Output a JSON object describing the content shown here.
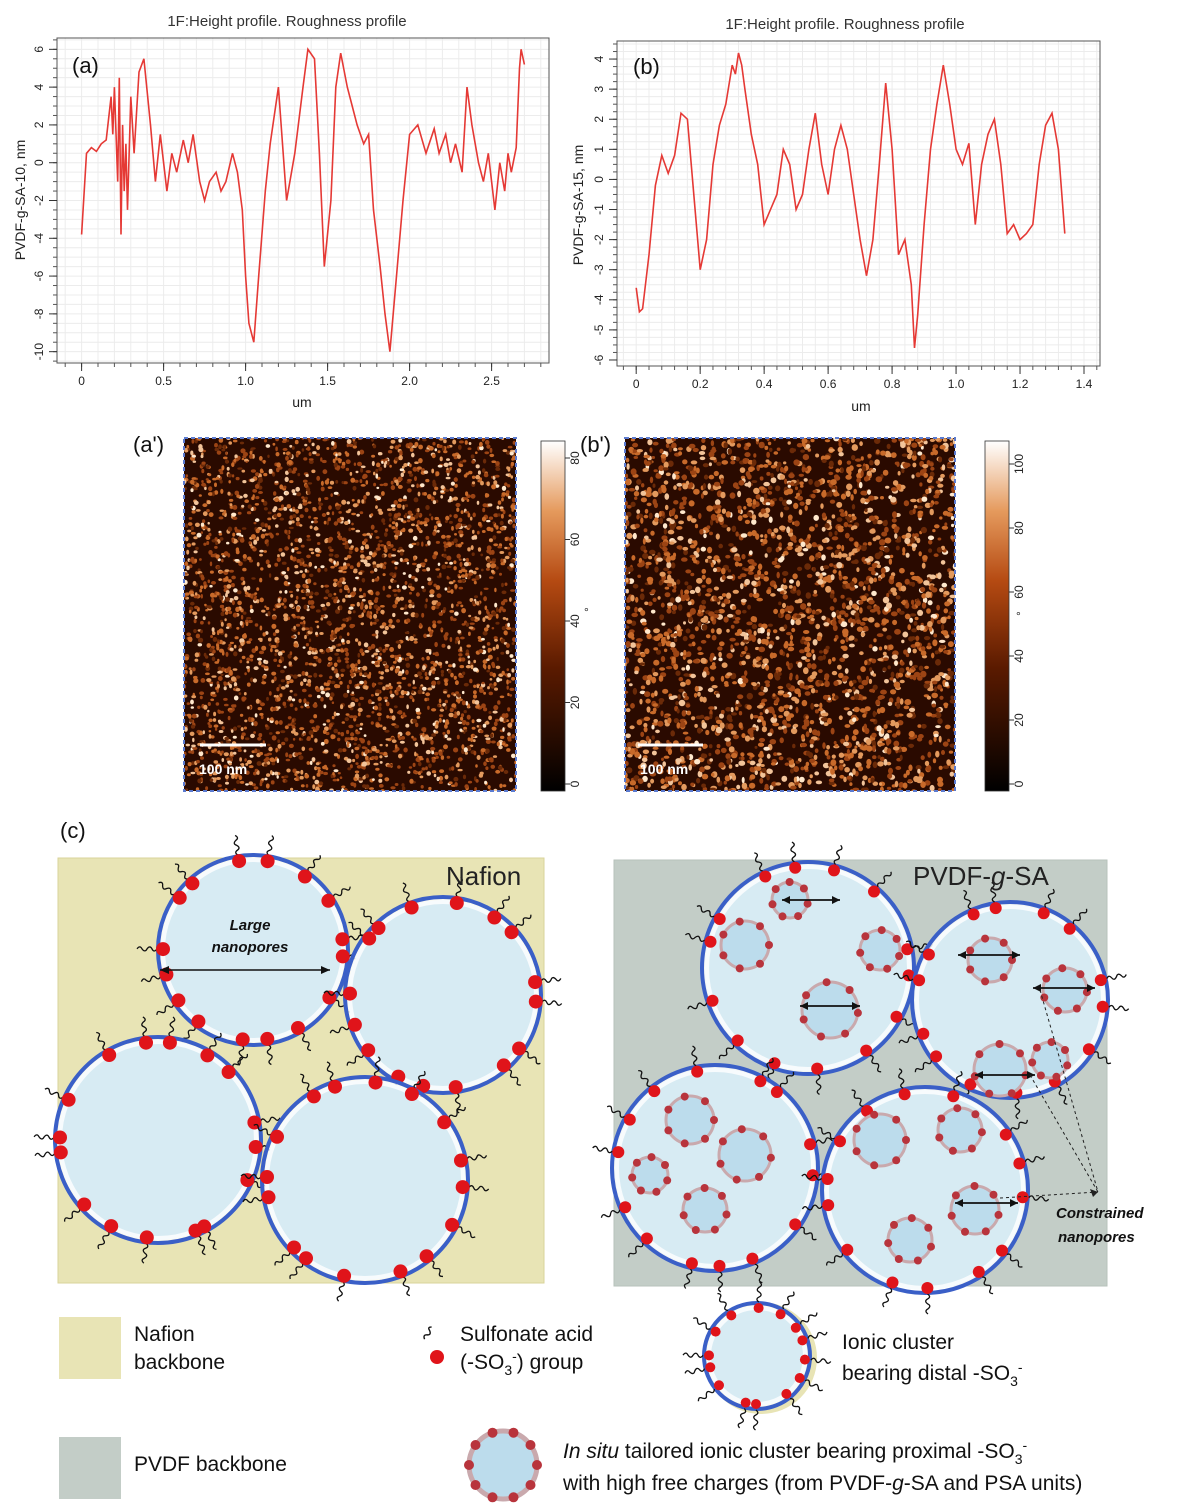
{
  "chart_data": [
    {
      "panel_label": "(a)",
      "type": "line",
      "title": "1F:Height profile. Roughness profile",
      "xlabel": "um",
      "ylabel": "PVDF-g-SA-10, nm",
      "xlim": [
        -0.15,
        2.85
      ],
      "ylim": [
        -10.6,
        6.6
      ],
      "xticks": [
        0,
        0.5,
        1.0,
        1.5,
        2.0,
        2.5
      ],
      "xtick_labels": [
        "0",
        "0.5",
        "1.0",
        "1.5",
        "2.0",
        "2.5"
      ],
      "yticks": [
        -10,
        -8,
        -6,
        -4,
        -2,
        0,
        2,
        4,
        6
      ],
      "yminor_step": 0.5,
      "grid": true,
      "color": "#e53935",
      "series": [
        {
          "x": [
            0,
            0.03,
            0.06,
            0.09,
            0.12,
            0.15,
            0.18,
            0.19,
            0.2,
            0.22,
            0.23,
            0.24,
            0.25,
            0.26,
            0.27,
            0.28,
            0.3,
            0.32,
            0.35,
            0.38,
            0.42,
            0.45,
            0.48,
            0.52,
            0.55,
            0.58,
            0.62,
            0.65,
            0.68,
            0.72,
            0.75,
            0.78,
            0.82,
            0.85,
            0.88,
            0.92,
            0.95,
            0.98,
            1.0,
            1.02,
            1.05,
            1.08,
            1.12,
            1.15,
            1.2,
            1.25,
            1.3,
            1.35,
            1.38,
            1.42,
            1.45,
            1.48,
            1.52,
            1.55,
            1.58,
            1.62,
            1.65,
            1.68,
            1.72,
            1.75,
            1.78,
            1.82,
            1.85,
            1.88,
            1.92,
            1.96,
            2.0,
            2.05,
            2.1,
            2.15,
            2.18,
            2.22,
            2.25,
            2.28,
            2.32,
            2.35,
            2.38,
            2.42,
            2.45,
            2.48,
            2.52,
            2.55,
            2.58,
            2.6,
            2.62,
            2.65,
            2.67,
            2.68,
            2.7
          ],
          "y": [
            -3.8,
            0.5,
            0.8,
            0.6,
            1.0,
            1.2,
            3.5,
            1.5,
            4.0,
            -1.0,
            4.5,
            -3.8,
            2.0,
            -1.5,
            1.0,
            -2.5,
            3.5,
            0.5,
            4.8,
            5.5,
            2.0,
            -1.0,
            1.5,
            -1.5,
            0.5,
            -0.5,
            1.2,
            0.0,
            1.5,
            -1.0,
            -2.0,
            -1.0,
            -0.5,
            -1.5,
            -1.0,
            0.5,
            -0.5,
            -2.5,
            -6.0,
            -8.5,
            -9.5,
            -6.0,
            -1.5,
            1.0,
            4.0,
            -2.0,
            0.5,
            4.0,
            6.0,
            5.5,
            0.5,
            -5.5,
            -2.0,
            4.0,
            5.8,
            4.0,
            3.0,
            2.0,
            1.0,
            1.5,
            -2.5,
            -5.5,
            -8.0,
            -10.0,
            -6.0,
            -2.0,
            1.5,
            2.0,
            0.5,
            1.8,
            0.5,
            1.5,
            0.0,
            1.0,
            -0.5,
            4.0,
            2.0,
            0.0,
            -1.0,
            0.5,
            -2.5,
            0.0,
            -1.5,
            0.5,
            -0.5,
            0.8,
            5.0,
            6.0,
            5.2
          ]
        }
      ]
    },
    {
      "panel_label": "(b)",
      "type": "line",
      "title": "1F:Height profile. Roughness profile",
      "xlabel": "um",
      "ylabel": "PVDF-g-SA-15, nm",
      "xlim": [
        -0.06,
        1.45
      ],
      "ylim": [
        -6.2,
        4.6
      ],
      "xticks": [
        0,
        0.2,
        0.4,
        0.6,
        0.8,
        1.0,
        1.2,
        1.4
      ],
      "xtick_labels": [
        "0",
        "0.2",
        "0.4",
        "0.6",
        "0.8",
        "1.0",
        "1.2",
        "1.4"
      ],
      "yticks": [
        -6,
        -5,
        -4,
        -3,
        -2,
        -1,
        0,
        1,
        2,
        3,
        4
      ],
      "yminor_step": 0.25,
      "grid": true,
      "color": "#e53935",
      "series": [
        {
          "x": [
            0,
            0.01,
            0.02,
            0.04,
            0.06,
            0.08,
            0.1,
            0.12,
            0.14,
            0.16,
            0.18,
            0.2,
            0.22,
            0.24,
            0.26,
            0.28,
            0.3,
            0.31,
            0.32,
            0.33,
            0.34,
            0.36,
            0.38,
            0.4,
            0.42,
            0.44,
            0.46,
            0.48,
            0.5,
            0.52,
            0.54,
            0.56,
            0.58,
            0.6,
            0.62,
            0.64,
            0.66,
            0.68,
            0.7,
            0.72,
            0.74,
            0.76,
            0.78,
            0.8,
            0.82,
            0.84,
            0.86,
            0.87,
            0.88,
            0.9,
            0.92,
            0.94,
            0.96,
            0.98,
            1.0,
            1.02,
            1.04,
            1.06,
            1.08,
            1.1,
            1.12,
            1.14,
            1.16,
            1.18,
            1.2,
            1.22,
            1.24,
            1.26,
            1.28,
            1.3,
            1.32,
            1.34
          ],
          "y": [
            -3.6,
            -4.4,
            -4.3,
            -2.5,
            -0.2,
            0.8,
            0.2,
            0.8,
            2.2,
            2.0,
            -0.5,
            -3.0,
            -2.0,
            0.5,
            1.8,
            2.5,
            3.8,
            3.5,
            4.2,
            3.8,
            3.0,
            1.5,
            0.5,
            -1.5,
            -1.0,
            -0.5,
            1.0,
            0.5,
            -1.0,
            -0.5,
            1.0,
            2.2,
            0.5,
            -0.5,
            1.0,
            1.8,
            1.0,
            -0.5,
            -2.0,
            -3.2,
            -2.0,
            0.5,
            3.2,
            1.0,
            -2.5,
            -2.0,
            -3.5,
            -5.6,
            -4.5,
            -1.5,
            1.0,
            2.5,
            3.8,
            2.5,
            1.0,
            0.5,
            1.2,
            -1.5,
            0.5,
            1.5,
            2.0,
            0.5,
            -1.8,
            -1.5,
            -2.0,
            -1.8,
            -1.5,
            0.5,
            1.8,
            2.2,
            1.0,
            -1.8
          ]
        }
      ]
    }
  ],
  "images": [
    {
      "label": "(a')",
      "scale_bar": "100 nm",
      "colorbar_ticks": [
        "0",
        "20",
        "40",
        "60",
        "80"
      ],
      "colorbar_unit": "°"
    },
    {
      "label": "(b')",
      "scale_bar": "100 nm",
      "colorbar_ticks": [
        "0",
        "20",
        "40",
        "60",
        "80",
        "100"
      ],
      "colorbar_unit": "°"
    }
  ],
  "schematic": {
    "label": "(c)",
    "left_title": "Nafion",
    "right_title_pre": "PVDF-",
    "right_title_g": "g",
    "right_title_post": "-SA",
    "large_pores_1": "Large",
    "large_pores_2": "nanopores",
    "constrained_1": "Constrained",
    "constrained_2": "nanopores"
  },
  "legend": {
    "nafion_1": "Nafion",
    "nafion_2": "backbone",
    "pvdf": "PVDF backbone",
    "sulfonate_1": "Sulfonate acid",
    "sulfonate_2a": "(-SO",
    "sulfonate_2b": "3",
    "sulfonate_2c": "-",
    "sulfonate_2d": ") group",
    "ionic_1": "Ionic cluster",
    "ionic_2a": "bearing distal -SO",
    "ionic_2b": "3",
    "ionic_2c": "-",
    "insitu_1a": "In situ",
    "insitu_1b": " tailored ionic cluster bearing proximal -SO",
    "insitu_1c": "3",
    "insitu_1d": "-",
    "insitu_2a": "with high free charges (from PVDF-",
    "insitu_2b": "g",
    "insitu_2c": "-SA and PSA units)"
  },
  "colors": {
    "line": "#e53935",
    "nafion_backbone": "#e8e4b5",
    "pvdf_backbone": "#c3cdc7",
    "pore_fill": "#d7ebf3",
    "pore_ring": "#3a5fc7",
    "sulfonate": "#e0141a"
  }
}
